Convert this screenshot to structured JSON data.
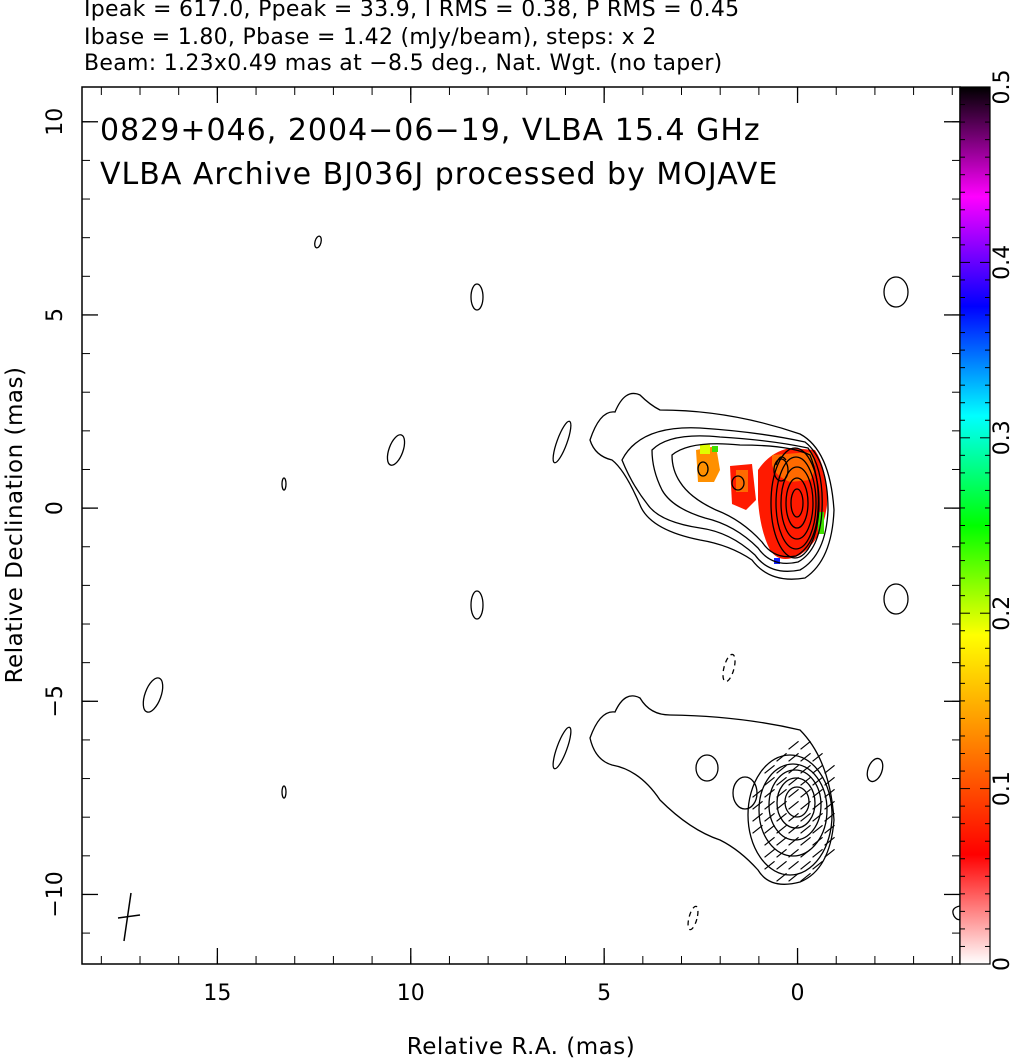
{
  "header": {
    "line1": "Ipeak = 617.0, Ppeak = 33.9, I RMS = 0.38, P RMS = 0.45",
    "line2": "Ibase = 1.80, Pbase = 1.42 (mJy/beam), steps: x 2",
    "line3": "Beam: 1.23x0.49 mas at −8.5 deg., Nat. Wgt. (no taper)"
  },
  "annotation": {
    "line1": "0829+046, 2004−06−19, VLBA 15.4 GHz",
    "line2": "VLBA Archive BJ036J processed by MOJAVE"
  },
  "chart_data": {
    "type": "contour",
    "xlabel": "Relative R.A. (mas)",
    "ylabel": "Relative Declination (mas)",
    "xlim": [
      18.5,
      -4.2
    ],
    "ylim": [
      -11.8,
      10.9
    ],
    "x_ticks": [
      {
        "v": 15,
        "label": "15"
      },
      {
        "v": 10,
        "label": "10"
      },
      {
        "v": 5,
        "label": "5"
      },
      {
        "v": 0,
        "label": "0"
      }
    ],
    "y_ticks": [
      {
        "v": 10,
        "label": "10"
      },
      {
        "v": 5,
        "label": "5"
      },
      {
        "v": 0,
        "label": "0"
      },
      {
        "v": -5,
        "label": "−5"
      },
      {
        "v": -10,
        "label": "−10"
      }
    ],
    "x_minor_step": 1,
    "y_minor_step": 1,
    "colorbar": {
      "min": 0,
      "max": 0.5,
      "ticks": [
        {
          "v": 0,
          "label": "0"
        },
        {
          "v": 0.1,
          "label": "0.1"
        },
        {
          "v": 0.2,
          "label": "0.2"
        },
        {
          "v": 0.3,
          "label": "0.3"
        },
        {
          "v": 0.4,
          "label": "0.4"
        },
        {
          "v": 0.5,
          "label": "0.5"
        }
      ],
      "colors": [
        "#ffffff",
        "#ff0000",
        "#ff8000",
        "#ffff00",
        "#00ff00",
        "#00ffff",
        "#0000ff",
        "#ff00ff",
        "#000000"
      ]
    },
    "contour_levels_mjy_per_beam": [
      1.8,
      3.6,
      7.2,
      14.4,
      28.8,
      57.6,
      115.2,
      230.4,
      460.8
    ],
    "upper_panel": {
      "core": {
        "x": 0.0,
        "y": 0.0
      },
      "jet_knots": [
        {
          "x": 1.6,
          "y": 0.6
        },
        {
          "x": 2.4,
          "y": 1.0
        }
      ]
    },
    "lower_panel": {
      "core": {
        "x": 0.0,
        "y": -7.9
      }
    },
    "beam": {
      "major_mas": 1.23,
      "minor_mas": 0.49,
      "pa_deg": -8.5,
      "x": 17.4,
      "y": -10.7
    }
  }
}
